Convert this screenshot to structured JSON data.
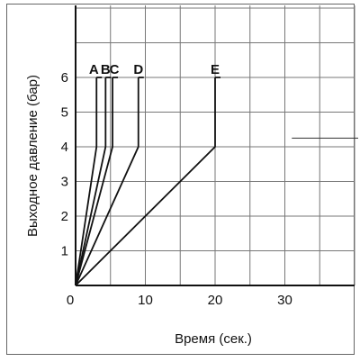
{
  "chart_data": {
    "type": "line",
    "title": "",
    "xlabel": "Время (сек.)",
    "ylabel": "Выходное давление (бар)",
    "xlim": [
      0,
      40
    ],
    "ylim": [
      0,
      8
    ],
    "xticks": [
      "0",
      "10",
      "20",
      "30"
    ],
    "yticks": [
      "1",
      "2",
      "3",
      "4",
      "5",
      "6"
    ],
    "grid": true,
    "series": [
      {
        "name": "A",
        "x": [
          0,
          3,
          3
        ],
        "y": [
          0,
          4,
          6
        ]
      },
      {
        "name": "B",
        "x": [
          0,
          4.3,
          4.3
        ],
        "y": [
          0,
          4,
          6
        ]
      },
      {
        "name": "C",
        "x": [
          0,
          5.3,
          5.3
        ],
        "y": [
          0,
          4,
          6
        ]
      },
      {
        "name": "D",
        "x": [
          0,
          9,
          9
        ],
        "y": [
          0,
          4,
          6
        ]
      },
      {
        "name": "E",
        "x": [
          0,
          20,
          20
        ],
        "y": [
          0,
          4,
          6
        ]
      }
    ],
    "annotation_line": {
      "x": [
        31,
        41
      ],
      "y": [
        4.25,
        4.25
      ]
    }
  }
}
